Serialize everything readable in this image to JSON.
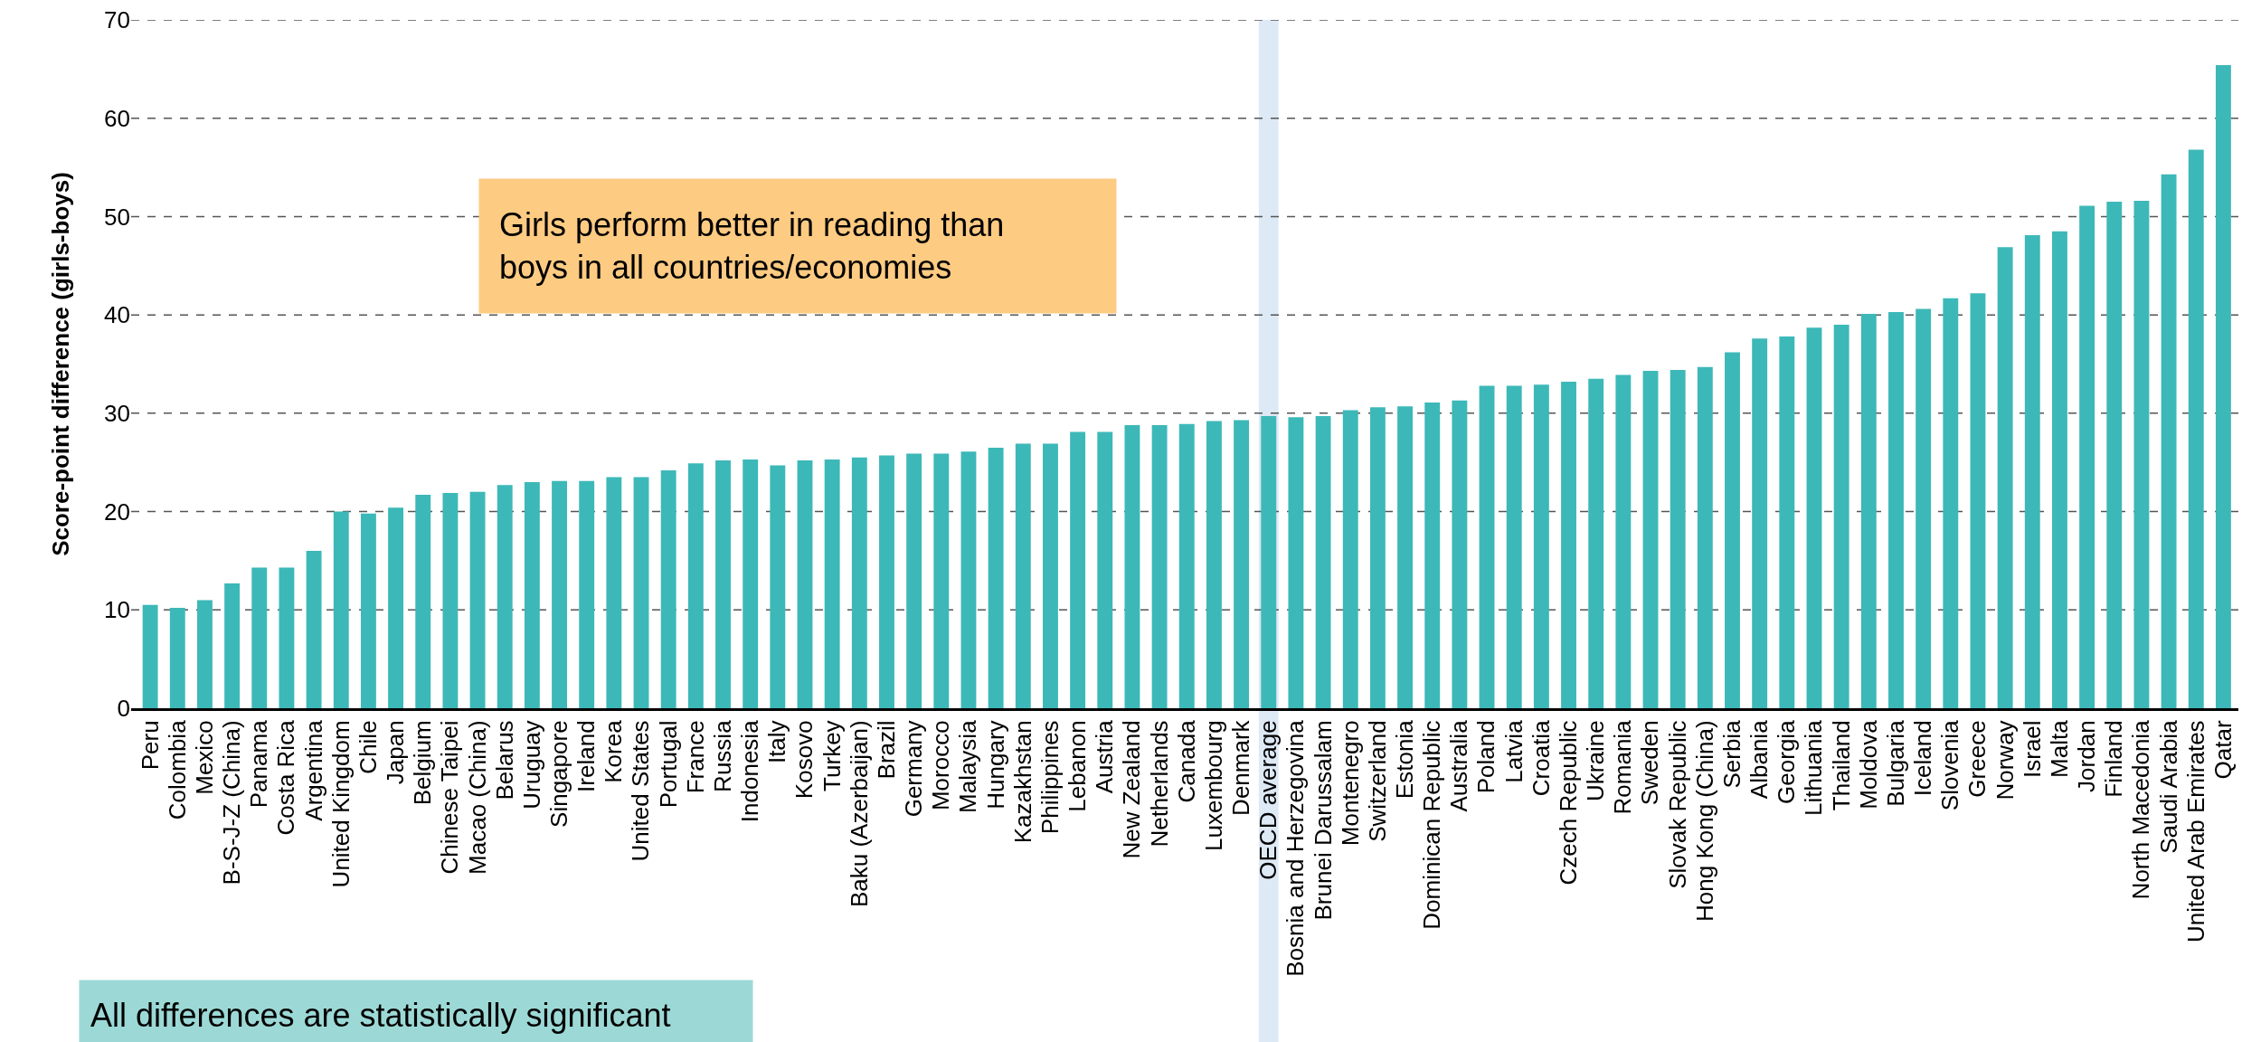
{
  "chart_data": {
    "type": "bar",
    "ylabel": "Score-point difference (girls-boys)",
    "categories": [
      "Peru",
      "Colombia",
      "Mexico",
      "B-S-J-Z (China)",
      "Panama",
      "Costa Rica",
      "Argentina",
      "United Kingdom",
      "Chile",
      "Japan",
      "Belgium",
      "Chinese Taipei",
      "Macao (China)",
      "Belarus",
      "Uruguay",
      "Singapore",
      "Ireland",
      "Korea",
      "United States",
      "Portugal",
      "France",
      "Russia",
      "Indonesia",
      "Italy",
      "Kosovo",
      "Turkey",
      "Baku (Azerbaijan)",
      "Brazil",
      "Germany",
      "Morocco",
      "Malaysia",
      "Hungary",
      "Kazakhstan",
      "Philippines",
      "Lebanon",
      "Austria",
      "New Zealand",
      "Netherlands",
      "Canada",
      "Luxembourg",
      "Denmark",
      "OECD average",
      "Bosnia and Herzegovina",
      "Brunei Darussalam",
      "Montenegro",
      "Switzerland",
      "Estonia",
      "Dominican Republic",
      "Australia",
      "Poland",
      "Latvia",
      "Croatia",
      "Czech Republic",
      "Ukraine",
      "Romania",
      "Sweden",
      "Slovak Republic",
      "Hong Kong (China)",
      "Serbia",
      "Albania",
      "Georgia",
      "Lithuania",
      "Thailand",
      "Moldova",
      "Bulgaria",
      "Iceland",
      "Slovenia",
      "Greece",
      "Norway",
      "Israel",
      "Malta",
      "Jordan",
      "Finland",
      "North Macedonia",
      "Saudi Arabia",
      "United Arab Emirates",
      "Qatar"
    ],
    "values": [
      10.5,
      10.2,
      11.0,
      12.7,
      14.3,
      14.3,
      16.0,
      20.0,
      19.8,
      20.4,
      21.7,
      21.9,
      22.0,
      22.7,
      23.0,
      23.1,
      23.1,
      23.5,
      23.5,
      24.2,
      24.9,
      25.2,
      25.3,
      24.7,
      25.2,
      25.3,
      25.5,
      25.7,
      25.9,
      25.9,
      26.1,
      26.5,
      26.9,
      26.9,
      28.1,
      28.1,
      28.8,
      28.8,
      28.9,
      29.2,
      29.3,
      29.7,
      29.6,
      29.7,
      30.3,
      30.6,
      30.7,
      31.1,
      31.3,
      32.8,
      32.8,
      32.9,
      33.2,
      33.5,
      33.9,
      34.3,
      34.4,
      34.7,
      36.2,
      37.6,
      37.8,
      38.7,
      39.0,
      40.1,
      40.3,
      40.6,
      41.7,
      42.2,
      46.9,
      48.1,
      48.5,
      51.1,
      51.5,
      51.6,
      54.3,
      56.8,
      65.4
    ],
    "color": "#3db8b8",
    "ylim": [
      0,
      70
    ],
    "yticks": [
      0,
      10,
      20,
      30,
      40,
      50,
      60,
      70
    ],
    "grid": "y",
    "bands": [
      {
        "axis": "x",
        "from": "OECD average",
        "to": "OECD average",
        "color": "#dde9f5"
      }
    ],
    "annotations": [
      "Girls perform better in reading than\nboys in all countries/economies",
      "All differences are statistically significant"
    ]
  }
}
